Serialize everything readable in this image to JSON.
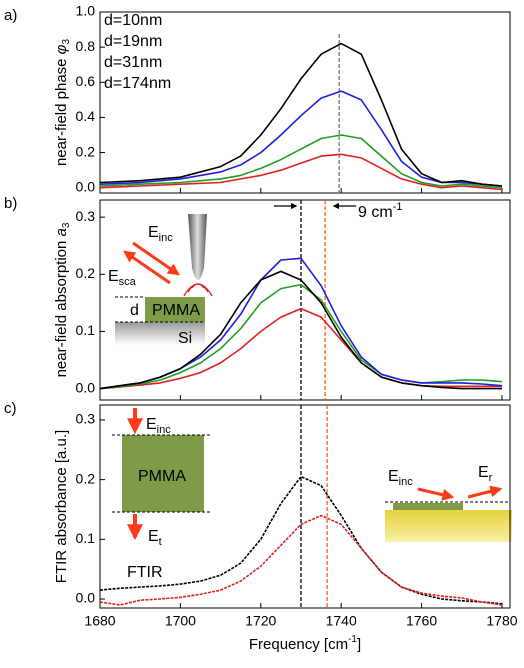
{
  "chart_data": [
    {
      "type": "line",
      "panel_label": "a)",
      "ylabel": "near-field phase ",
      "ylabel_symbol": "φ",
      "ylabel_sub": "3",
      "xlim": [
        1680,
        1782
      ],
      "ylim": [
        -0.03,
        1.0
      ],
      "yticks": [
        {
          "value": 0,
          "label": "0.0"
        },
        0.2,
        0.4,
        0.6,
        0.8,
        {
          "value": 1,
          "label": "1.0"
        }
      ],
      "x": [
        1680,
        1690,
        1700,
        1710,
        1715,
        1720,
        1725,
        1730,
        1735,
        1740,
        1745,
        1750,
        1755,
        1760,
        1765,
        1770,
        1775,
        1780
      ],
      "legend": "upper left",
      "series": [
        {
          "name": "d=10nm",
          "color": "#e02020",
          "values": [
            0.0,
            0.01,
            0.02,
            0.03,
            0.05,
            0.07,
            0.1,
            0.14,
            0.18,
            0.19,
            0.17,
            0.11,
            0.05,
            0.02,
            0.0,
            0.01,
            0.0,
            -0.01
          ]
        },
        {
          "name": "d=19nm",
          "color": "#1fa01f",
          "values": [
            0.01,
            0.02,
            0.03,
            0.05,
            0.07,
            0.11,
            0.16,
            0.22,
            0.28,
            0.3,
            0.28,
            0.18,
            0.08,
            0.03,
            0.01,
            0.02,
            0.01,
            0.0
          ]
        },
        {
          "name": "d=31nm",
          "color": "#1f1fe0",
          "values": [
            0.02,
            0.03,
            0.05,
            0.09,
            0.13,
            0.2,
            0.3,
            0.41,
            0.51,
            0.55,
            0.5,
            0.33,
            0.15,
            0.06,
            0.03,
            0.03,
            0.02,
            0.01
          ]
        },
        {
          "name": "d=174nm",
          "color": "#000000",
          "values": [
            0.03,
            0.04,
            0.06,
            0.12,
            0.18,
            0.3,
            0.45,
            0.62,
            0.76,
            0.82,
            0.76,
            0.5,
            0.22,
            0.08,
            0.03,
            0.04,
            0.02,
            0.01
          ]
        }
      ],
      "vlines": [
        {
          "x": 1739.5,
          "color": "#777777"
        }
      ]
    },
    {
      "type": "line",
      "panel_label": "b)",
      "ylabel": "near-field absorption ",
      "ylabel_symbol": "a",
      "ylabel_sub": "3",
      "xlim": [
        1680,
        1782
      ],
      "ylim": [
        -0.02,
        0.33
      ],
      "yticks": [
        {
          "value": 0,
          "label": "0.0"
        },
        0.1,
        0.2,
        0.3
      ],
      "x": [
        1680,
        1685,
        1690,
        1695,
        1700,
        1705,
        1710,
        1715,
        1720,
        1725,
        1730,
        1735,
        1740,
        1745,
        1750,
        1755,
        1760,
        1765,
        1770,
        1775,
        1780
      ],
      "series": [
        {
          "color": "#e02020",
          "values": [
            0.0,
            0.003,
            0.006,
            0.01,
            0.018,
            0.028,
            0.045,
            0.07,
            0.1,
            0.125,
            0.14,
            0.125,
            0.085,
            0.045,
            0.02,
            0.01,
            0.005,
            0.004,
            0.004,
            0.004,
            0.004
          ]
        },
        {
          "color": "#1fa01f",
          "values": [
            0.0,
            0.004,
            0.008,
            0.015,
            0.028,
            0.045,
            0.07,
            0.105,
            0.15,
            0.175,
            0.182,
            0.155,
            0.1,
            0.05,
            0.025,
            0.015,
            0.01,
            0.012,
            0.015,
            0.015,
            0.012
          ]
        },
        {
          "color": "#1f1fe0",
          "values": [
            0.0,
            0.005,
            0.01,
            0.02,
            0.035,
            0.055,
            0.085,
            0.13,
            0.19,
            0.225,
            0.228,
            0.18,
            0.11,
            0.055,
            0.025,
            0.015,
            0.01,
            0.01,
            0.01,
            0.008,
            0.005
          ]
        },
        {
          "color": "#000000",
          "values": [
            0.0,
            0.005,
            0.01,
            0.02,
            0.035,
            0.06,
            0.095,
            0.15,
            0.19,
            0.205,
            0.19,
            0.15,
            0.09,
            0.045,
            0.02,
            0.01,
            0.005,
            0.002,
            0.0,
            0.0,
            0.0
          ]
        }
      ],
      "vlines": [
        {
          "x": 1730,
          "color": "#000000"
        },
        {
          "x": 1736,
          "color": "#ff5a1f"
        }
      ],
      "annotations": [
        {
          "text": "9 cm",
          "sup": "-1"
        },
        {
          "text": "E",
          "sub": "inc"
        },
        {
          "text": "E",
          "sub": "sca"
        },
        {
          "text": "d"
        },
        {
          "text": "PMMA"
        },
        {
          "text": "Si"
        }
      ]
    },
    {
      "type": "line",
      "panel_label": "c)",
      "ylabel": "FTIR absorbance [a.u.]",
      "xlabel": "Frequency [cm",
      "xlabel_sup": "-1",
      "xlabel_end": "]",
      "xlim": [
        1680,
        1782
      ],
      "ylim": [
        -0.015,
        0.325
      ],
      "xticks": [
        1680,
        1700,
        1720,
        1740,
        1760,
        1780
      ],
      "yticks": [
        {
          "value": 0,
          "label": "0.0"
        },
        0.1,
        0.2,
        0.3
      ],
      "x": [
        1680,
        1685,
        1690,
        1695,
        1700,
        1705,
        1710,
        1715,
        1720,
        1725,
        1730,
        1735,
        1740,
        1745,
        1750,
        1755,
        1760,
        1765,
        1770,
        1775,
        1780
      ],
      "dashed": true,
      "series": [
        {
          "color": "#000000",
          "values": [
            0.015,
            0.018,
            0.02,
            0.022,
            0.025,
            0.03,
            0.04,
            0.06,
            0.1,
            0.16,
            0.205,
            0.19,
            0.14,
            0.085,
            0.045,
            0.02,
            0.008,
            0.0,
            -0.003,
            -0.005,
            -0.008
          ]
        },
        {
          "color": "#e02020",
          "values": [
            -0.005,
            -0.01,
            -0.002,
            0.0,
            0.003,
            0.008,
            0.015,
            0.03,
            0.055,
            0.09,
            0.125,
            0.14,
            0.125,
            0.085,
            0.045,
            0.02,
            0.01,
            0.005,
            0.002,
            -0.005,
            -0.01
          ]
        }
      ],
      "vlines": [
        {
          "x": 1730,
          "color": "#000000"
        },
        {
          "x": 1736.5,
          "color": "#ff5a1f"
        }
      ],
      "annotations": [
        {
          "text": "E",
          "sub": "inc"
        },
        {
          "text": "PMMA"
        },
        {
          "text": "E",
          "sub": "t"
        },
        {
          "text": "E",
          "sub": "inc"
        },
        {
          "text": "E",
          "sub": "r"
        },
        {
          "text": "FTIR"
        }
      ]
    }
  ]
}
